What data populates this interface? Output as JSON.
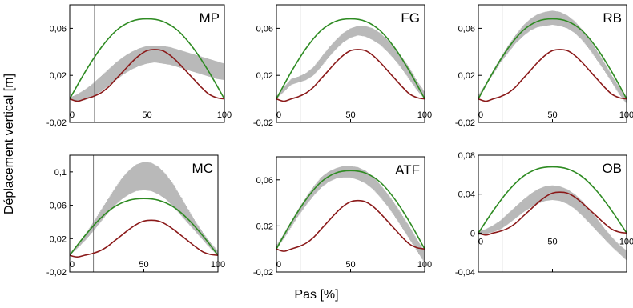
{
  "figure": {
    "ylabel": "Déplacement vertical [m]",
    "xlabel": "Pas [%]"
  },
  "chart_data": [
    {
      "type": "line",
      "title": "MP",
      "xlim": [
        0,
        100
      ],
      "ylim": [
        -0.02,
        0.08
      ],
      "yticks": [
        -0.02,
        0.02,
        0.06
      ],
      "yticklabels": [
        "-0,02",
        "0,02",
        "0,06"
      ],
      "xticks": [
        0,
        50,
        100
      ],
      "xticklabels": [
        "0",
        "50",
        "100"
      ],
      "marker_x": 16,
      "band": {
        "x": [
          0,
          5,
          10,
          15,
          20,
          25,
          30,
          35,
          40,
          45,
          50,
          55,
          60,
          65,
          70,
          75,
          80,
          85,
          90,
          95,
          100
        ],
        "lower": [
          0,
          -0.002,
          -0.001,
          0.002,
          0.006,
          0.011,
          0.016,
          0.021,
          0.025,
          0.028,
          0.03,
          0.031,
          0.03,
          0.029,
          0.027,
          0.025,
          0.023,
          0.021,
          0.019,
          0.017,
          0.016
        ],
        "upper": [
          0.001,
          0.004,
          0.008,
          0.013,
          0.019,
          0.025,
          0.031,
          0.036,
          0.04,
          0.043,
          0.045,
          0.045,
          0.045,
          0.044,
          0.042,
          0.04,
          0.038,
          0.036,
          0.034,
          0.032,
          0.03
        ]
      },
      "series": [
        {
          "color": "#2e8b22",
          "x": [
            0,
            10,
            20,
            30,
            40,
            50,
            60,
            70,
            80,
            90,
            100
          ],
          "values": [
            0,
            0.023,
            0.043,
            0.058,
            0.066,
            0.068,
            0.066,
            0.058,
            0.043,
            0.023,
            0
          ]
        },
        {
          "color": "#8b1a1a",
          "x": [
            0,
            5,
            10,
            15,
            20,
            25,
            30,
            35,
            40,
            45,
            50,
            55,
            60,
            65,
            70,
            75,
            80,
            85,
            90,
            95,
            100
          ],
          "values": [
            0,
            -0.002,
            0,
            0.002,
            0.005,
            0.01,
            0.017,
            0.024,
            0.031,
            0.037,
            0.041,
            0.042,
            0.041,
            0.037,
            0.031,
            0.024,
            0.017,
            0.01,
            0.004,
            0.001,
            0
          ]
        }
      ]
    },
    {
      "type": "line",
      "title": "FG",
      "xlim": [
        0,
        100
      ],
      "ylim": [
        -0.02,
        0.08
      ],
      "yticks": [
        -0.02,
        0.02,
        0.06
      ],
      "yticklabels": [
        "-0,02",
        "0,02",
        "0,06"
      ],
      "xticks": [
        0,
        50,
        100
      ],
      "xticklabels": [
        "0",
        "50",
        "100"
      ],
      "marker_x": 16,
      "band": {
        "x": [
          0,
          5,
          10,
          15,
          20,
          25,
          30,
          35,
          40,
          45,
          50,
          55,
          60,
          65,
          70,
          75,
          80,
          85,
          90,
          95,
          100
        ],
        "lower": [
          0,
          0.006,
          0.012,
          0.014,
          0.016,
          0.02,
          0.027,
          0.035,
          0.042,
          0.048,
          0.052,
          0.054,
          0.053,
          0.05,
          0.046,
          0.04,
          0.033,
          0.025,
          0.016,
          0.007,
          0
        ],
        "upper": [
          0.002,
          0.01,
          0.017,
          0.019,
          0.022,
          0.027,
          0.035,
          0.043,
          0.05,
          0.056,
          0.06,
          0.062,
          0.062,
          0.06,
          0.056,
          0.05,
          0.043,
          0.035,
          0.026,
          0.015,
          0.006
        ]
      },
      "series": [
        {
          "color": "#2e8b22",
          "x": [
            0,
            10,
            20,
            30,
            40,
            50,
            60,
            70,
            80,
            90,
            100
          ],
          "values": [
            0,
            0.023,
            0.043,
            0.058,
            0.066,
            0.068,
            0.066,
            0.058,
            0.043,
            0.023,
            0
          ]
        },
        {
          "color": "#8b1a1a",
          "x": [
            0,
            5,
            10,
            15,
            20,
            25,
            30,
            35,
            40,
            45,
            50,
            55,
            60,
            65,
            70,
            75,
            80,
            85,
            90,
            95,
            100
          ],
          "values": [
            0,
            -0.002,
            0,
            0.002,
            0.005,
            0.01,
            0.017,
            0.024,
            0.031,
            0.037,
            0.041,
            0.042,
            0.041,
            0.037,
            0.031,
            0.024,
            0.017,
            0.01,
            0.004,
            0.001,
            0
          ]
        }
      ]
    },
    {
      "type": "line",
      "title": "RB",
      "xlim": [
        0,
        100
      ],
      "ylim": [
        -0.02,
        0.08
      ],
      "yticks": [
        -0.02,
        0.02,
        0.06
      ],
      "yticklabels": [
        "-0,02",
        "0,02",
        "0,06"
      ],
      "xticks": [
        0,
        50,
        100
      ],
      "xticklabels": [
        "0",
        "50",
        "100"
      ],
      "marker_x": 16,
      "band": {
        "x": [
          0,
          5,
          10,
          15,
          20,
          25,
          30,
          35,
          40,
          45,
          50,
          55,
          60,
          65,
          70,
          75,
          80,
          85,
          90,
          95,
          100
        ],
        "lower": [
          0,
          0.011,
          0.021,
          0.031,
          0.039,
          0.047,
          0.053,
          0.058,
          0.061,
          0.062,
          0.063,
          0.062,
          0.06,
          0.056,
          0.05,
          0.042,
          0.033,
          0.024,
          0.014,
          0.004,
          -0.004
        ],
        "upper": [
          0.003,
          0.013,
          0.024,
          0.035,
          0.045,
          0.054,
          0.062,
          0.068,
          0.072,
          0.074,
          0.075,
          0.074,
          0.071,
          0.066,
          0.059,
          0.051,
          0.041,
          0.031,
          0.02,
          0.01,
          0.001
        ]
      },
      "series": [
        {
          "color": "#2e8b22",
          "x": [
            0,
            10,
            20,
            30,
            40,
            50,
            60,
            70,
            80,
            90,
            100
          ],
          "values": [
            0,
            0.023,
            0.043,
            0.058,
            0.066,
            0.068,
            0.066,
            0.058,
            0.043,
            0.023,
            0
          ]
        },
        {
          "color": "#8b1a1a",
          "x": [
            0,
            5,
            10,
            15,
            20,
            25,
            30,
            35,
            40,
            45,
            50,
            55,
            60,
            65,
            70,
            75,
            80,
            85,
            90,
            95,
            100
          ],
          "values": [
            0,
            -0.002,
            0,
            0.002,
            0.005,
            0.01,
            0.017,
            0.024,
            0.031,
            0.037,
            0.041,
            0.042,
            0.041,
            0.037,
            0.031,
            0.024,
            0.017,
            0.01,
            0.004,
            0.001,
            0
          ]
        }
      ]
    },
    {
      "type": "line",
      "title": "MC",
      "xlim": [
        0,
        100
      ],
      "ylim": [
        -0.02,
        0.12
      ],
      "yticks": [
        -0.02,
        0.02,
        0.06,
        0.1
      ],
      "yticklabels": [
        "-0,02",
        "0,02",
        "0,06",
        "0,1"
      ],
      "xticks": [
        0,
        50,
        100
      ],
      "xticklabels": [
        "0",
        "50",
        "100"
      ],
      "marker_x": 16,
      "band": {
        "x": [
          0,
          5,
          10,
          15,
          20,
          25,
          30,
          35,
          40,
          45,
          50,
          55,
          60,
          65,
          70,
          75,
          80,
          85,
          90,
          95,
          100
        ],
        "lower": [
          0,
          0.008,
          0.017,
          0.027,
          0.038,
          0.049,
          0.059,
          0.067,
          0.073,
          0.077,
          0.078,
          0.077,
          0.073,
          0.067,
          0.058,
          0.048,
          0.038,
          0.028,
          0.018,
          0.008,
          0
        ],
        "upper": [
          0.002,
          0.012,
          0.024,
          0.037,
          0.051,
          0.065,
          0.079,
          0.092,
          0.102,
          0.109,
          0.112,
          0.111,
          0.106,
          0.097,
          0.085,
          0.07,
          0.055,
          0.04,
          0.027,
          0.015,
          0.005
        ]
      },
      "series": [
        {
          "color": "#2e8b22",
          "x": [
            0,
            10,
            20,
            30,
            40,
            50,
            60,
            70,
            80,
            90,
            100
          ],
          "values": [
            0,
            0.023,
            0.043,
            0.058,
            0.066,
            0.068,
            0.066,
            0.058,
            0.043,
            0.023,
            0
          ]
        },
        {
          "color": "#8b1a1a",
          "x": [
            0,
            5,
            10,
            15,
            20,
            25,
            30,
            35,
            40,
            45,
            50,
            55,
            60,
            65,
            70,
            75,
            80,
            85,
            90,
            95,
            100
          ],
          "values": [
            0,
            -0.002,
            0,
            0.002,
            0.005,
            0.01,
            0.017,
            0.024,
            0.031,
            0.037,
            0.041,
            0.042,
            0.041,
            0.037,
            0.031,
            0.024,
            0.017,
            0.01,
            0.004,
            0.001,
            0
          ]
        }
      ]
    },
    {
      "type": "line",
      "title": "ATF",
      "xlim": [
        0,
        100
      ],
      "ylim": [
        -0.02,
        0.08
      ],
      "yticks": [
        -0.02,
        0.02,
        0.06
      ],
      "yticklabels": [
        "-0,02",
        "0,02",
        "0,06"
      ],
      "xticks": [
        0,
        50,
        100
      ],
      "xticklabels": [
        "0",
        "50",
        "100"
      ],
      "marker_x": 16,
      "band": {
        "x": [
          0,
          5,
          10,
          15,
          20,
          25,
          30,
          35,
          40,
          45,
          50,
          55,
          60,
          65,
          70,
          75,
          80,
          85,
          90,
          95,
          100
        ],
        "lower": [
          0,
          0.009,
          0.019,
          0.029,
          0.038,
          0.046,
          0.053,
          0.058,
          0.061,
          0.062,
          0.062,
          0.06,
          0.057,
          0.052,
          0.045,
          0.037,
          0.028,
          0.018,
          0.008,
          -0.002,
          -0.012
        ],
        "upper": [
          0.003,
          0.013,
          0.024,
          0.035,
          0.045,
          0.054,
          0.062,
          0.067,
          0.07,
          0.072,
          0.072,
          0.071,
          0.068,
          0.063,
          0.056,
          0.048,
          0.039,
          0.029,
          0.019,
          0.008,
          -0.002
        ]
      },
      "series": [
        {
          "color": "#2e8b22",
          "x": [
            0,
            10,
            20,
            30,
            40,
            50,
            60,
            70,
            80,
            90,
            100
          ],
          "values": [
            0,
            0.023,
            0.043,
            0.058,
            0.066,
            0.068,
            0.066,
            0.058,
            0.043,
            0.023,
            0
          ]
        },
        {
          "color": "#8b1a1a",
          "x": [
            0,
            5,
            10,
            15,
            20,
            25,
            30,
            35,
            40,
            45,
            50,
            55,
            60,
            65,
            70,
            75,
            80,
            85,
            90,
            95,
            100
          ],
          "values": [
            0,
            -0.002,
            0,
            0.002,
            0.005,
            0.01,
            0.017,
            0.024,
            0.031,
            0.037,
            0.041,
            0.042,
            0.041,
            0.037,
            0.031,
            0.024,
            0.017,
            0.01,
            0.004,
            0.001,
            0
          ]
        }
      ]
    },
    {
      "type": "line",
      "title": "OB",
      "xlim": [
        0,
        100
      ],
      "ylim": [
        -0.04,
        0.08
      ],
      "yticks": [
        -0.04,
        0,
        0.04,
        0.08
      ],
      "yticklabels": [
        "-0,04",
        "0",
        "0,04",
        "0,08"
      ],
      "xticks": [
        0,
        50,
        100
      ],
      "xticklabels": [
        "0",
        "50",
        "100"
      ],
      "marker_x": 16,
      "band": {
        "x": [
          0,
          5,
          10,
          15,
          20,
          25,
          30,
          35,
          40,
          45,
          50,
          55,
          60,
          65,
          70,
          75,
          80,
          85,
          90,
          95,
          100
        ],
        "lower": [
          -0.002,
          -0.001,
          0.001,
          0.004,
          0.009,
          0.015,
          0.021,
          0.026,
          0.03,
          0.033,
          0.034,
          0.033,
          0.03,
          0.025,
          0.018,
          0.01,
          0.002,
          -0.006,
          -0.014,
          -0.021,
          -0.028
        ],
        "upper": [
          0.002,
          0.004,
          0.008,
          0.013,
          0.02,
          0.027,
          0.034,
          0.04,
          0.045,
          0.048,
          0.049,
          0.048,
          0.045,
          0.04,
          0.033,
          0.024,
          0.015,
          0.005,
          -0.004,
          -0.012,
          -0.018
        ]
      },
      "series": [
        {
          "color": "#2e8b22",
          "x": [
            0,
            10,
            20,
            30,
            40,
            50,
            60,
            70,
            80,
            90,
            100
          ],
          "values": [
            0,
            0.023,
            0.043,
            0.058,
            0.066,
            0.068,
            0.066,
            0.058,
            0.043,
            0.023,
            0
          ]
        },
        {
          "color": "#8b1a1a",
          "x": [
            0,
            5,
            10,
            15,
            20,
            25,
            30,
            35,
            40,
            45,
            50,
            55,
            60,
            65,
            70,
            75,
            80,
            85,
            90,
            95,
            100
          ],
          "values": [
            0,
            -0.002,
            0,
            0.002,
            0.005,
            0.01,
            0.017,
            0.024,
            0.031,
            0.037,
            0.041,
            0.042,
            0.041,
            0.037,
            0.031,
            0.024,
            0.017,
            0.01,
            0.004,
            0.001,
            0
          ]
        }
      ]
    }
  ]
}
